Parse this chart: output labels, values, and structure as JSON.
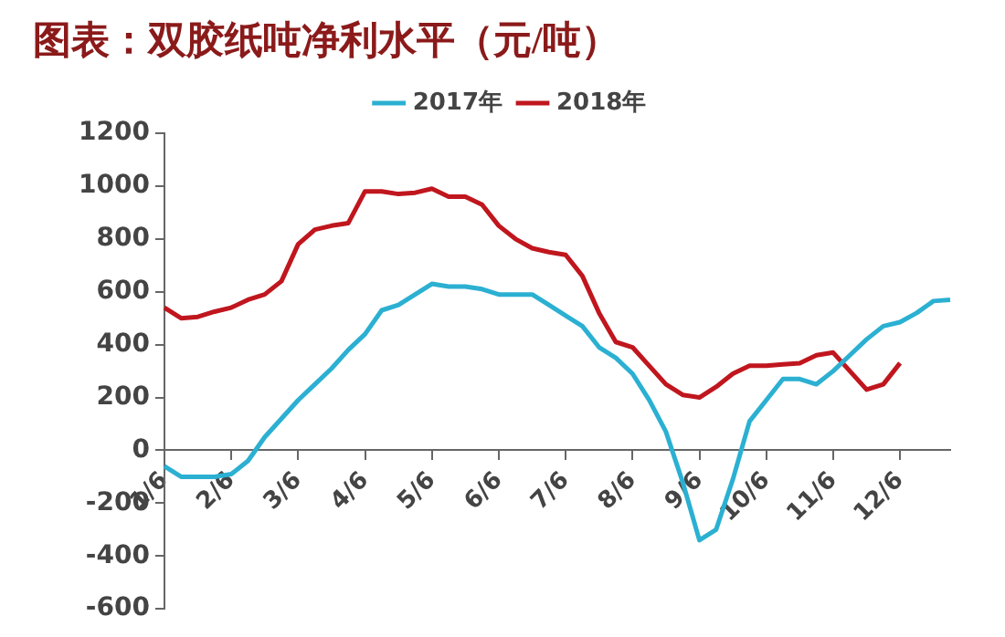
{
  "chart_data": {
    "type": "line",
    "title": "图表：双胶纸吨净利水平（元/吨）",
    "categories": [
      "1/6",
      null,
      null,
      null,
      "2/6",
      null,
      null,
      null,
      "3/6",
      null,
      null,
      null,
      "4/6",
      null,
      null,
      null,
      "5/6",
      null,
      null,
      null,
      "6/6",
      null,
      null,
      null,
      "7/6",
      null,
      null,
      null,
      "8/6",
      null,
      null,
      null,
      "9/6",
      null,
      null,
      null,
      "10/6",
      null,
      null,
      null,
      "11/6",
      null,
      null,
      null,
      "12/6",
      null,
      null,
      null
    ],
    "ylim": [
      -600,
      1200
    ],
    "yticks": [
      -600,
      -400,
      -200,
      0,
      200,
      400,
      600,
      800,
      1000,
      1200
    ],
    "grid": false,
    "legend": "top",
    "marker": "none",
    "line_style": "solid",
    "series": [
      {
        "name": "2017年",
        "color": "#2bb0d2",
        "values": [
          -60,
          -100,
          -100,
          -100,
          -90,
          -40,
          50,
          120,
          190,
          250,
          310,
          380,
          440,
          530,
          550,
          590,
          630,
          620,
          620,
          610,
          590,
          590,
          590,
          550,
          510,
          470,
          390,
          350,
          290,
          190,
          70,
          -120,
          -340,
          -300,
          -110,
          110,
          190,
          270,
          270,
          250,
          300,
          360,
          420,
          470,
          485,
          520,
          565,
          570
        ]
      },
      {
        "name": "2018年",
        "color": "#c0161e",
        "values": [
          540,
          500,
          505,
          525,
          540,
          570,
          590,
          640,
          780,
          835,
          850,
          860,
          980,
          980,
          970,
          975,
          990,
          960,
          960,
          930,
          850,
          800,
          765,
          750,
          740,
          660,
          520,
          410,
          390,
          320,
          250,
          210,
          200,
          240,
          290,
          320,
          320,
          325,
          330,
          360,
          370,
          300,
          230,
          250,
          330,
          null,
          null,
          null
        ]
      }
    ]
  }
}
